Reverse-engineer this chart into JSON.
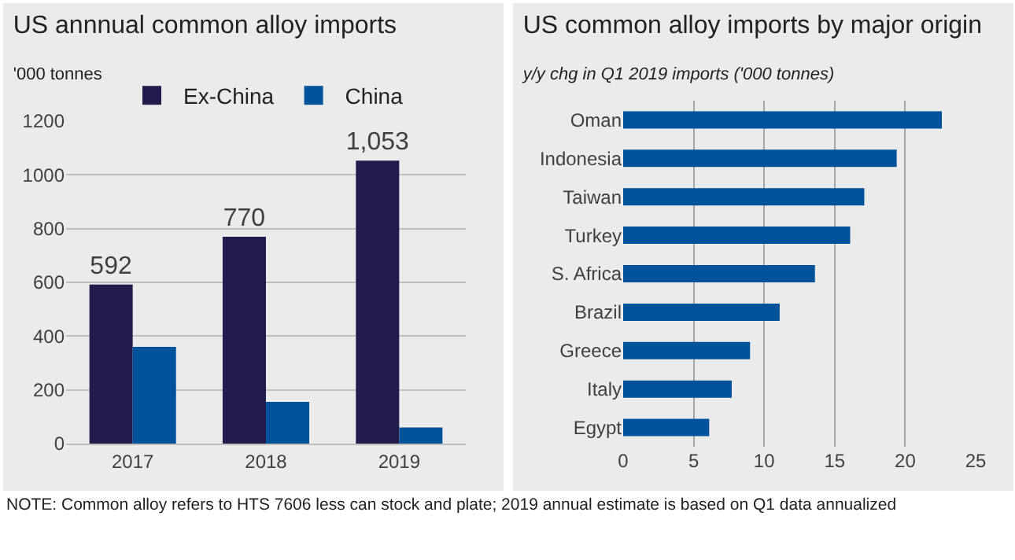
{
  "chart_data": [
    {
      "type": "bar",
      "title": "US annnual common alloy imports",
      "subtitle": "'000 tonnes",
      "categories": [
        "2017",
        "2018",
        "2019"
      ],
      "series": [
        {
          "name": "Ex-China",
          "color": "#211c4b",
          "values": [
            592,
            770,
            1053
          ],
          "value_labels": [
            "592",
            "770",
            "1,053"
          ]
        },
        {
          "name": "China",
          "color": "#00539b",
          "values": [
            360,
            155,
            60
          ]
        }
      ],
      "ylim": [
        0,
        1200
      ],
      "yticks": [
        0,
        200,
        400,
        600,
        800,
        1000,
        1200
      ],
      "grid": "y",
      "legend": "top",
      "annotations": [
        "NOTE: Common alloy refers to HTS 7606 less can stock and plate; 2019 annual estimate is based on Q1 data annualized"
      ]
    },
    {
      "type": "bar",
      "orientation": "horizontal",
      "title": "US common alloy imports by major origin",
      "subtitle": "y/y chg in Q1 2019 imports ('000 tonnes)",
      "categories": [
        "Oman",
        "Indonesia",
        "Taiwan",
        "Turkey",
        "S. Africa",
        "Brazil",
        "Greece",
        "Italy",
        "Egypt"
      ],
      "series": [
        {
          "color": "#00539b",
          "values": [
            22.6,
            19.4,
            17.1,
            16.1,
            13.6,
            11.1,
            9.0,
            7.7,
            6.1
          ]
        }
      ],
      "xlim": [
        0,
        25
      ],
      "xticks": [
        0,
        5,
        10,
        15,
        20,
        25
      ],
      "grid": "x",
      "legend": false
    }
  ]
}
